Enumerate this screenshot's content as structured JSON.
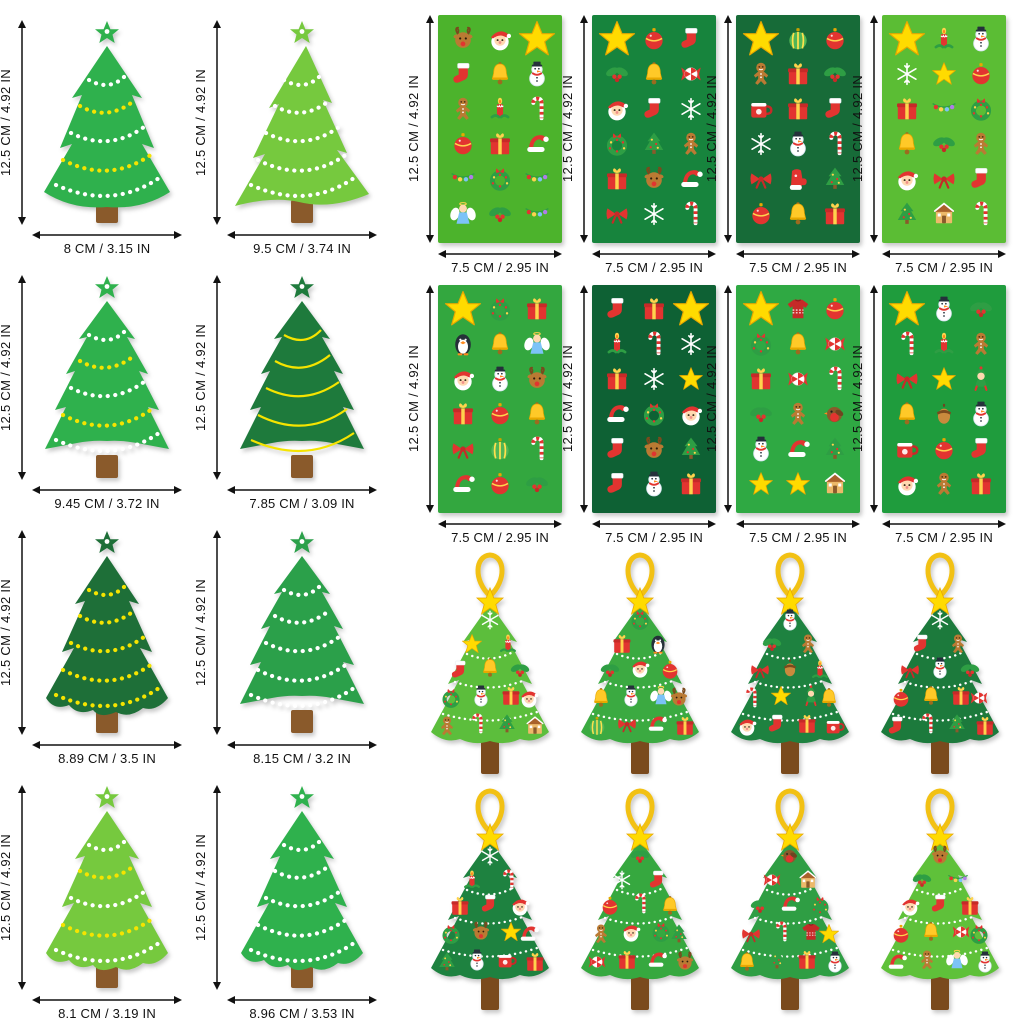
{
  "palette": {
    "background": "#FFFFFF",
    "arrow_black": "#111111",
    "star_yellow": "#FFDB00",
    "trunk_brown": "#8A5A2B",
    "ribbon_gold": "#F2C114"
  },
  "plain_trees": [
    {
      "height_label": "12.5 CM / 4.92 IN",
      "width_label": "8 CM / 3.15 IN",
      "shape": "A",
      "color": "#2FB14D",
      "garland_style": "dotted",
      "garland_colors": [
        "#FFFFFF",
        "#F5E400"
      ]
    },
    {
      "height_label": "12.5 CM / 4.92 IN",
      "width_label": "9.5 CM / 3.74 IN",
      "shape": "B",
      "color": "#76C93E",
      "garland_style": "dotted",
      "garland_colors": [
        "#FFFFFF"
      ]
    },
    {
      "height_label": "12.5 CM / 4.92 IN",
      "width_label": "9.45 CM / 3.72 IN",
      "shape": "C",
      "color": "#2FB14D",
      "garland_style": "dotted",
      "garland_colors": [
        "#FFFFFF",
        "#F5E400"
      ]
    },
    {
      "height_label": "12.5 CM / 4.92 IN",
      "width_label": "7.85 CM / 3.09 IN",
      "shape": "C",
      "color": "#1E7A3C",
      "garland_style": "wavy",
      "garland_colors": [
        "#F5E400"
      ]
    },
    {
      "height_label": "12.5 CM / 4.92 IN",
      "width_label": "8.89 CM / 3.5 IN",
      "shape": "D",
      "color": "#1E6F38",
      "garland_style": "dotted",
      "garland_colors": [
        "#F5E400"
      ]
    },
    {
      "height_label": "12.5 CM / 4.92 IN",
      "width_label": "8.15 CM / 3.2 IN",
      "shape": "C",
      "color": "#2BA04A",
      "garland_style": "dotted",
      "garland_colors": [
        "#FFFFFF"
      ]
    },
    {
      "height_label": "12.5 CM / 4.92 IN",
      "width_label": "8.1 CM / 3.19 IN",
      "shape": "D",
      "color": "#76C93E",
      "garland_style": "dotted",
      "garland_colors": [
        "#FFFFFF",
        "#F5E400"
      ]
    },
    {
      "height_label": "12.5 CM / 4.92 IN",
      "width_label": "8.96 CM / 3.53 IN",
      "shape": "D",
      "color": "#2FB14D",
      "garland_style": "dotted",
      "garland_colors": [
        "#FFFFFF"
      ]
    }
  ],
  "sticker_sheets": [
    {
      "height_label": "12.5 CM / 4.92 IN",
      "width_label": "7.5 CM / 2.95 IN",
      "bg": "#4CB32C",
      "stickers": [
        "reindeer",
        "santa",
        "bigstar",
        "stocking",
        "bell",
        "snowman",
        "ginger",
        "candle",
        "candycane",
        "ornament",
        "gift",
        "santahat",
        "lights",
        "wreath",
        "lights",
        "angel",
        "holly",
        "lights"
      ]
    },
    {
      "height_label": "12.5 CM / 4.92 IN",
      "width_label": "7.5 CM / 2.95 IN",
      "bg": "#17843D",
      "stickers": [
        "bigstar",
        "ornament",
        "stocking",
        "holly",
        "bell",
        "candy",
        "santa",
        "stocking",
        "snowflake",
        "wreath",
        "xtree",
        "ginger",
        "gift",
        "reindeer",
        "santahat",
        "bow",
        "snowflake",
        "candycane"
      ]
    },
    {
      "height_label": "12.5 CM / 4.92 IN",
      "width_label": "7.5 CM / 2.95 IN",
      "bg": "#176B38",
      "stickers": [
        "bigstar",
        "ornament2",
        "ornament",
        "ginger",
        "gift",
        "holly",
        "mug",
        "gift",
        "stocking",
        "snowflake",
        "snowman",
        "candycane",
        "bow",
        "mitten",
        "xtree",
        "ornament",
        "bell",
        "gift"
      ]
    },
    {
      "height_label": "12.5 CM / 4.92 IN",
      "width_label": "7.5 CM / 2.95 IN",
      "bg": "#5BBD34",
      "stickers": [
        "bigstar",
        "candle",
        "snowman",
        "snowflake",
        "star",
        "ornament",
        "gift",
        "lights",
        "wreath",
        "bell",
        "holly",
        "ginger",
        "santa",
        "bow",
        "stocking",
        "xtree",
        "house",
        "candycane"
      ]
    },
    {
      "height_label": "12.5 CM / 4.92 IN",
      "width_label": "7.5 CM / 2.95 IN",
      "bg": "#33A73F",
      "stickers": [
        "bigstar",
        "wreath",
        "gift",
        "penguin",
        "bell",
        "angel",
        "santa",
        "snowman",
        "reindeer",
        "gift",
        "ornament",
        "bell",
        "bow",
        "ornament2",
        "candycane",
        "santahat",
        "ornament",
        "holly"
      ]
    },
    {
      "height_label": "12.5 CM / 4.92 IN",
      "width_label": "7.5 CM / 2.95 IN",
      "bg": "#0E6134",
      "stickers": [
        "stocking",
        "gift",
        "bigstar",
        "candle",
        "candycane",
        "snowflake",
        "gift",
        "snowflake",
        "star",
        "santahat",
        "wreath",
        "santa",
        "stocking",
        "reindeer",
        "xtree",
        "stocking",
        "snowman",
        "gift"
      ]
    },
    {
      "height_label": "12.5 CM / 4.92 IN",
      "width_label": "7.5 CM / 2.95 IN",
      "bg": "#2FA943",
      "stickers": [
        "bigstar",
        "sweater",
        "ornament",
        "wreath",
        "bell",
        "candy",
        "gift",
        "candy",
        "candycane",
        "holly",
        "ginger",
        "robin",
        "snowman",
        "santahat",
        "xtree",
        "star",
        "star",
        "house"
      ]
    },
    {
      "height_label": "12.5 CM / 4.92 IN",
      "width_label": "7.5 CM / 2.95 IN",
      "bg": "#1F9C3D",
      "stickers": [
        "bigstar",
        "snowman",
        "holly",
        "candycane",
        "candle",
        "ginger",
        "bow",
        "star",
        "elf",
        "bell",
        "acorn",
        "snowman",
        "mug",
        "ornament",
        "stocking",
        "santa",
        "ginger",
        "gift"
      ]
    }
  ],
  "decorated_trees": [
    {
      "color": "#5CBE3C",
      "stickers": [
        "snowflake",
        "star",
        "candle",
        "stocking",
        "bell",
        "holly",
        "wreath",
        "snowman",
        "gift",
        "santa",
        "ginger",
        "candycane",
        "xtree",
        "house"
      ]
    },
    {
      "color": "#3BAA41",
      "stickers": [
        "wreath",
        "gift",
        "penguin",
        "holly",
        "santa",
        "ornament",
        "bell",
        "snowman",
        "angel",
        "reindeer",
        "ornament2",
        "bow",
        "santahat",
        "gift"
      ]
    },
    {
      "color": "#1E8240",
      "stickers": [
        "snowman",
        "holly",
        "ginger",
        "bow",
        "acorn",
        "candle",
        "candycane",
        "star",
        "elf",
        "bell",
        "santa",
        "stocking",
        "gift",
        "mug"
      ]
    },
    {
      "color": "#1C7A3C",
      "stickers": [
        "snowflake",
        "stocking",
        "ginger",
        "bow",
        "snowman",
        "holly",
        "ornament",
        "bell",
        "gift",
        "candy",
        "stocking",
        "candycane",
        "xtree",
        "gift"
      ]
    },
    {
      "color": "#1E8240",
      "stickers": [
        "snowflake",
        "candle",
        "candycane",
        "gift",
        "stocking",
        "santa",
        "wreath",
        "reindeer",
        "star",
        "santahat",
        "xtree",
        "snowman",
        "mug",
        "gift"
      ]
    },
    {
      "color": "#36A83F",
      "stickers": [
        "holly",
        "snowflake",
        "stocking",
        "ornament",
        "candycane",
        "bell",
        "ginger",
        "santa",
        "wreath",
        "xtree",
        "candy",
        "gift",
        "santahat",
        "reindeer"
      ]
    },
    {
      "color": "#2F9E44",
      "stickers": [
        "robin",
        "candy",
        "house",
        "holly",
        "santahat",
        "wreath",
        "bow",
        "candycane",
        "sweater",
        "star",
        "bell",
        "xtree",
        "gift",
        "snowman"
      ]
    },
    {
      "color": "#5FC13A",
      "stickers": [
        "reindeer",
        "holly",
        "lights",
        "santa",
        "stocking",
        "gift",
        "ornament",
        "bell",
        "candy",
        "wreath",
        "santahat",
        "ginger",
        "angel",
        "snowman"
      ]
    }
  ]
}
